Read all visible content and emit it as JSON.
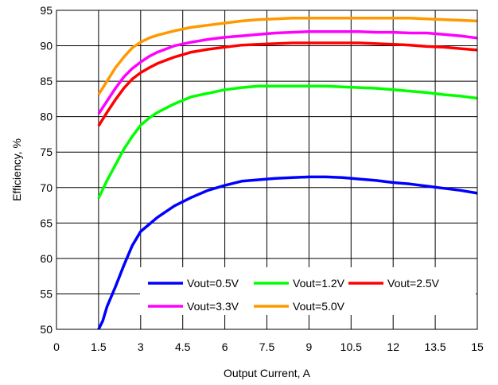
{
  "chart_data": {
    "type": "line",
    "title": "",
    "xlabel": "Output Current, A",
    "ylabel": "Efficiency, %",
    "xlim": [
      0,
      15
    ],
    "ylim": [
      50,
      95
    ],
    "xticks": [
      "0",
      "1.5",
      "3",
      "4.5",
      "6",
      "7.5",
      "9",
      "10.5",
      "12",
      "13.5",
      "15"
    ],
    "yticks": [
      "50",
      "55",
      "60",
      "65",
      "70",
      "75",
      "80",
      "85",
      "90",
      "95"
    ],
    "grid": true,
    "legend_position": "bottom-right",
    "series": [
      {
        "name": "Vout=0.5V",
        "color": "#0000ff",
        "x": [
          1.5,
          1.65,
          1.8,
          2.1,
          2.4,
          2.7,
          3.0,
          3.3,
          3.6,
          4.2,
          4.8,
          5.4,
          6.0,
          6.6,
          7.2,
          7.8,
          8.4,
          9.0,
          9.6,
          10.2,
          10.8,
          11.4,
          12.0,
          12.6,
          13.2,
          13.8,
          14.4,
          15.0
        ],
        "y": [
          50.0,
          51.2,
          53.2,
          56.0,
          59.0,
          61.8,
          63.8,
          64.8,
          65.8,
          67.4,
          68.6,
          69.6,
          70.3,
          70.9,
          71.1,
          71.3,
          71.4,
          71.5,
          71.5,
          71.4,
          71.2,
          71.0,
          70.7,
          70.5,
          70.2,
          69.9,
          69.6,
          69.2
        ]
      },
      {
        "name": "Vout=1.2V",
        "color": "#00ff00",
        "x": [
          1.5,
          1.8,
          2.1,
          2.4,
          2.7,
          3.0,
          3.3,
          3.6,
          4.2,
          4.8,
          5.4,
          6.0,
          6.6,
          7.2,
          7.8,
          8.4,
          9.0,
          9.6,
          10.2,
          10.8,
          11.4,
          12.0,
          12.6,
          13.2,
          13.8,
          14.4,
          15.0
        ],
        "y": [
          68.5,
          71.0,
          73.2,
          75.4,
          77.2,
          78.8,
          79.8,
          80.6,
          81.8,
          82.8,
          83.3,
          83.8,
          84.1,
          84.3,
          84.3,
          84.3,
          84.3,
          84.3,
          84.2,
          84.1,
          84.0,
          83.8,
          83.6,
          83.4,
          83.1,
          82.9,
          82.6
        ]
      },
      {
        "name": "Vout=2.5V",
        "color": "#ff0000",
        "x": [
          1.5,
          1.8,
          2.1,
          2.4,
          2.7,
          3.0,
          3.3,
          3.6,
          4.2,
          4.8,
          5.4,
          6.0,
          6.6,
          7.2,
          7.8,
          8.4,
          9.0,
          9.6,
          10.2,
          10.8,
          11.4,
          12.0,
          12.6,
          13.2,
          13.8,
          14.4,
          15.0
        ],
        "y": [
          78.7,
          80.6,
          82.4,
          84.0,
          85.3,
          86.2,
          86.9,
          87.5,
          88.4,
          89.1,
          89.5,
          89.8,
          90.1,
          90.2,
          90.3,
          90.4,
          90.4,
          90.4,
          90.4,
          90.4,
          90.3,
          90.2,
          90.1,
          89.9,
          89.8,
          89.6,
          89.4
        ]
      },
      {
        "name": "Vout=3.3V",
        "color": "#ff00ff",
        "x": [
          1.5,
          1.8,
          2.1,
          2.4,
          2.7,
          3.0,
          3.3,
          3.6,
          4.2,
          4.8,
          5.4,
          6.0,
          6.6,
          7.2,
          7.8,
          8.4,
          9.0,
          9.6,
          10.2,
          10.8,
          11.4,
          12.0,
          12.6,
          13.2,
          13.8,
          14.4,
          15.0
        ],
        "y": [
          80.4,
          82.2,
          84.0,
          85.6,
          86.8,
          87.7,
          88.5,
          89.1,
          90.0,
          90.5,
          90.9,
          91.2,
          91.4,
          91.6,
          91.8,
          91.9,
          92.0,
          92.0,
          92.0,
          92.0,
          91.9,
          91.9,
          91.8,
          91.8,
          91.6,
          91.4,
          91.1
        ]
      },
      {
        "name": "Vout=5.0V",
        "color": "#ff9900",
        "x": [
          1.5,
          1.8,
          2.1,
          2.4,
          2.7,
          3.0,
          3.3,
          3.6,
          4.2,
          4.8,
          5.4,
          6.0,
          6.6,
          7.2,
          7.8,
          8.4,
          9.0,
          9.6,
          10.2,
          10.8,
          11.4,
          12.0,
          12.6,
          13.2,
          13.8,
          14.4,
          15.0
        ],
        "y": [
          83.1,
          85.0,
          86.9,
          88.4,
          89.7,
          90.5,
          91.1,
          91.5,
          92.1,
          92.6,
          92.9,
          93.2,
          93.5,
          93.7,
          93.8,
          93.9,
          93.9,
          93.9,
          93.9,
          93.9,
          93.9,
          93.9,
          93.9,
          93.8,
          93.7,
          93.6,
          93.5
        ]
      }
    ]
  }
}
